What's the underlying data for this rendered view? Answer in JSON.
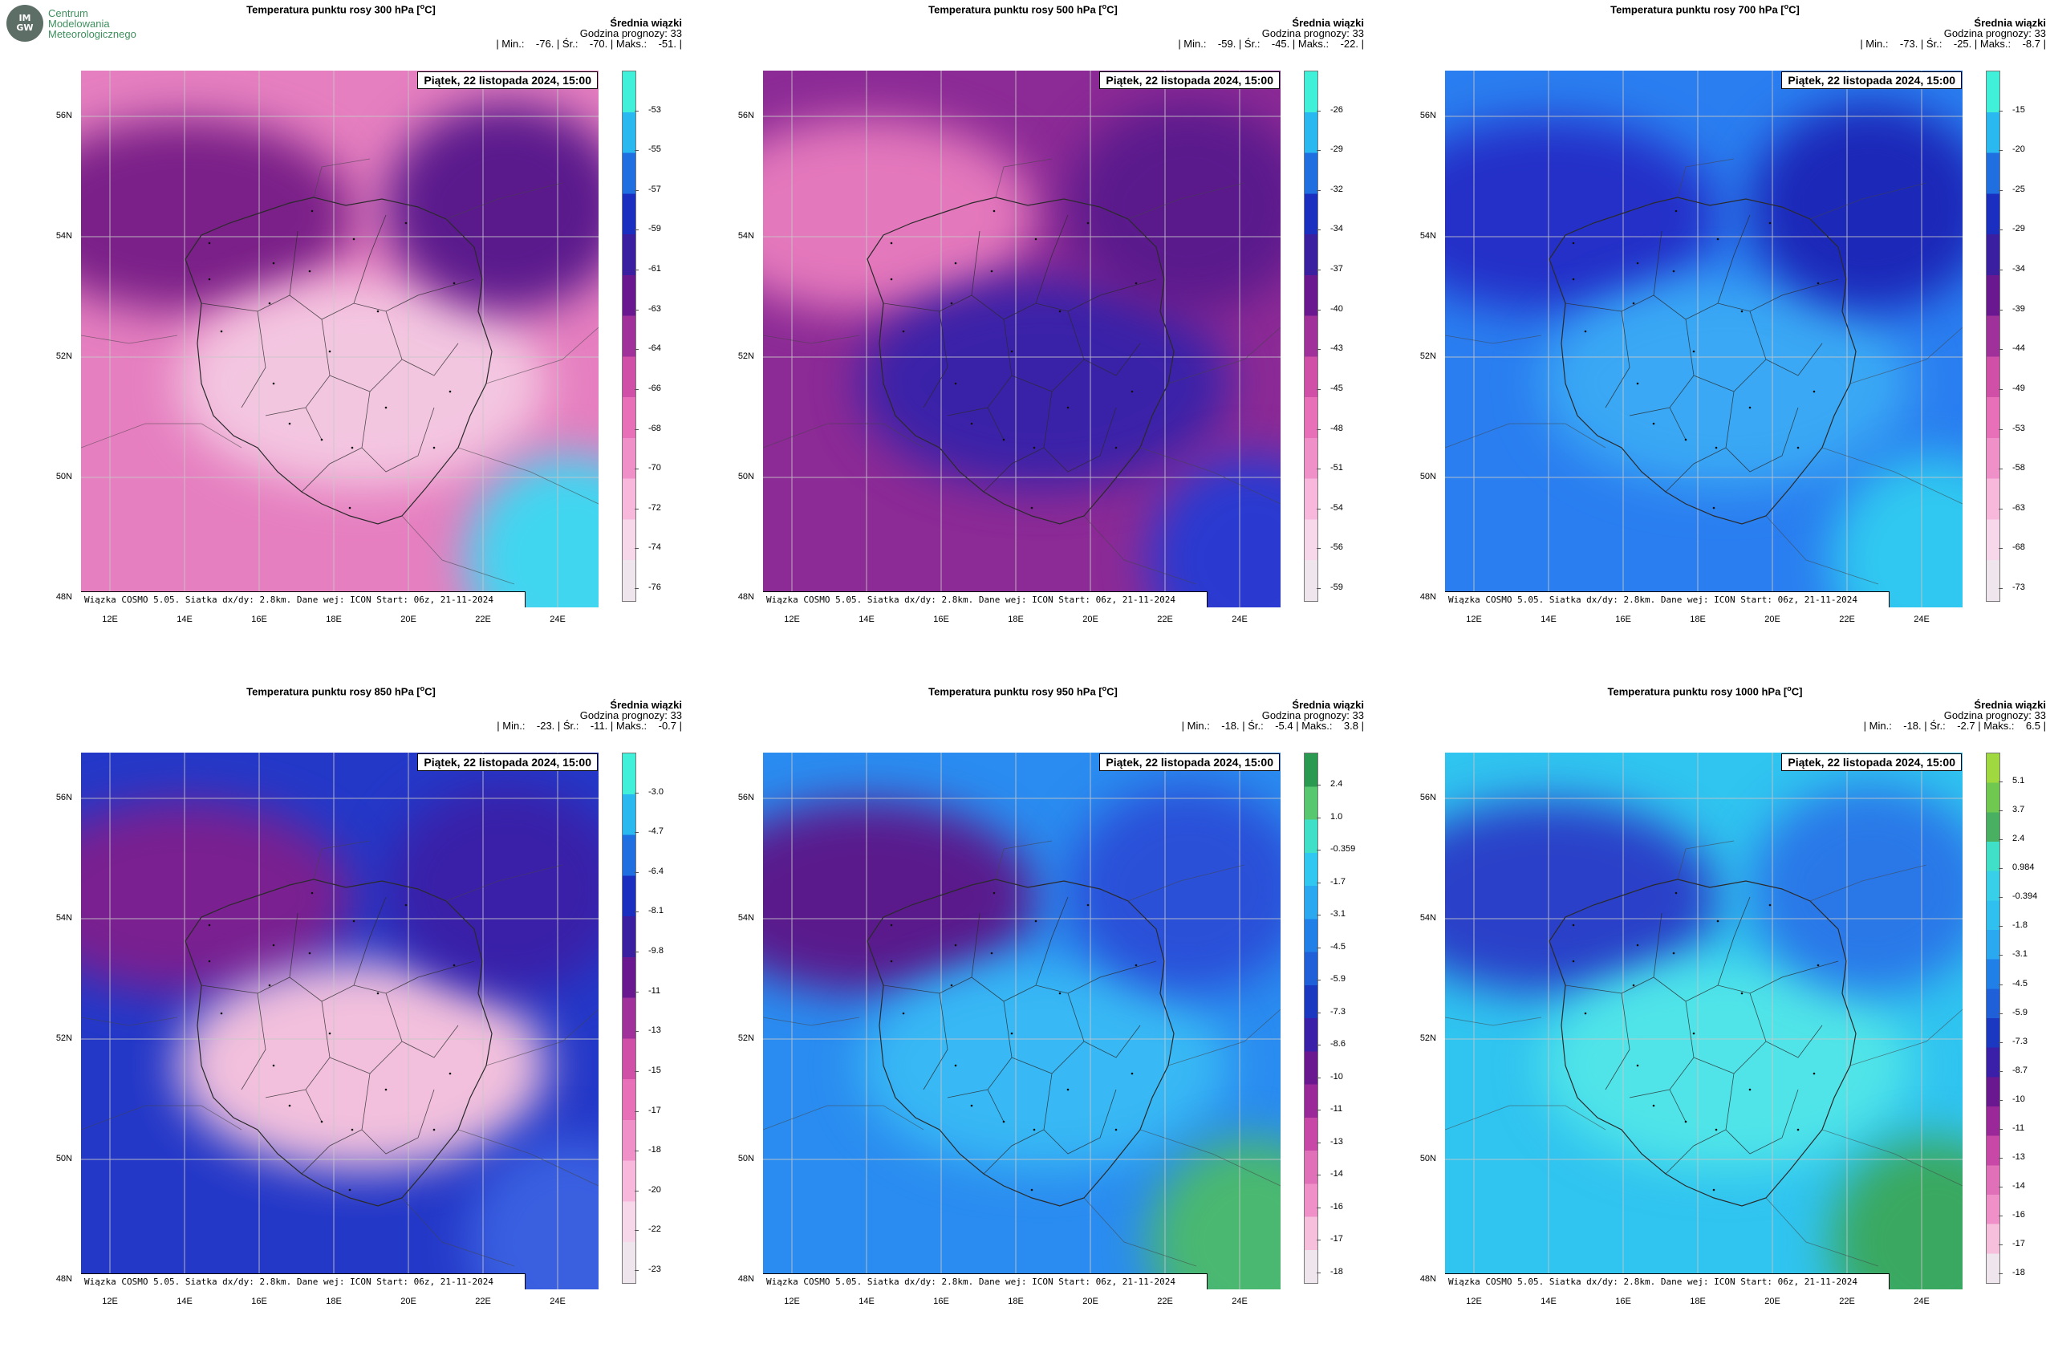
{
  "logo": {
    "mark_top": "IM",
    "mark_bottom": "GW",
    "line1": "Centrum",
    "line2": "Modelowania",
    "line3": "Meteorologicznego"
  },
  "common": {
    "subtitle": "Średnia wiązki",
    "forecast_hour": "Godzina prognozy: 33",
    "date": "Piątek, 22 listopada 2024, 15:00",
    "footer": "Wiązka COSMO 5.05. Siatka dx/dy: 2.8km. Dane wej: ICON Start: 06z, 21-11-2024",
    "lat_labels": [
      "56N",
      "54N",
      "52N",
      "50N",
      "48N"
    ],
    "lon_labels": [
      "12E",
      "14E",
      "16E",
      "18E",
      "20E",
      "22E",
      "24E"
    ]
  },
  "panels": [
    {
      "title": "Temperatura punktu rosy 300 hPa [",
      "unit_sup": "o",
      "unit_end": "C]",
      "stats": "| Min.:    -76. | Śr.:    -70. | Maks.:    -51. |",
      "colorbar_ticks": [
        "-53",
        "-55",
        "-57",
        "-59",
        "-61",
        "-63",
        "-64",
        "-66",
        "-68",
        "-70",
        "-72",
        "-74",
        "-76"
      ],
      "colorbar_colors": [
        "#40f0d8",
        "#2ab8f0",
        "#1f6fe0",
        "#1a2fc0",
        "#3a1fa0",
        "#6a1890",
        "#a0309a",
        "#d050a8",
        "#e870b8",
        "#f090c8",
        "#f8b8dc",
        "#f6d8ea",
        "#eee6ec"
      ],
      "field": {
        "base": "#e67fc0",
        "b1": "#7a2088",
        "b2": "#f3c6e0",
        "b3": "#5a1a8c",
        "b4": "#40d6f0"
      }
    },
    {
      "title": "Temperatura punktu rosy 500 hPa [",
      "unit_sup": "o",
      "unit_end": "C]",
      "stats": "| Min.:    -59. | Śr.:    -45. | Maks.:    -22. |",
      "colorbar_ticks": [
        "-26",
        "-29",
        "-32",
        "-34",
        "-37",
        "-40",
        "-43",
        "-45",
        "-48",
        "-51",
        "-54",
        "-56",
        "-59"
      ],
      "colorbar_colors": [
        "#40f0d8",
        "#2ab8f0",
        "#1f6fe0",
        "#1a2fc0",
        "#3a1fa0",
        "#6a1890",
        "#a0309a",
        "#d050a8",
        "#e870b8",
        "#f090c8",
        "#f8b8dc",
        "#f6d8ea",
        "#eee6ec"
      ],
      "field": {
        "base": "#8c2a96",
        "b1": "#e478bc",
        "b2": "#3a22a8",
        "b3": "#5a1a8c",
        "b4": "#2a3ad0"
      }
    },
    {
      "title": "Temperatura punktu rosy 700 hPa [",
      "unit_sup": "o",
      "unit_end": "C]",
      "stats": "| Min.:    -73. | Śr.:    -25. | Maks.:    -8.7 |",
      "colorbar_ticks": [
        "-15",
        "-20",
        "-25",
        "-29",
        "-34",
        "-39",
        "-44",
        "-49",
        "-53",
        "-58",
        "-63",
        "-68",
        "-73"
      ],
      "colorbar_colors": [
        "#40f0d8",
        "#2ab8f0",
        "#1f6fe0",
        "#1a2fc0",
        "#3a1fa0",
        "#6a1890",
        "#a0309a",
        "#d050a8",
        "#e870b8",
        "#f090c8",
        "#f8b8dc",
        "#f6d8ea",
        "#eee6ec"
      ],
      "field": {
        "base": "#2a7ef0",
        "b1": "#2430c8",
        "b2": "#3aa8f4",
        "b3": "#1c28b8",
        "b4": "#30c8f0"
      }
    },
    {
      "title": "Temperatura punktu rosy 850 hPa [",
      "unit_sup": "o",
      "unit_end": "C]",
      "stats": "| Min.:    -23. | Śr.:    -11. | Maks.:    -0.7 |",
      "colorbar_ticks": [
        "-3.0",
        "-4.7",
        "-6.4",
        "-8.1",
        "-9.8",
        "-11",
        "-13",
        "-15",
        "-17",
        "-18",
        "-20",
        "-22",
        "-23"
      ],
      "colorbar_colors": [
        "#40f0d8",
        "#2ab8f0",
        "#1f6fe0",
        "#1a2fc0",
        "#3a1fa0",
        "#6a1890",
        "#a0309a",
        "#d050a8",
        "#e870b8",
        "#f090c8",
        "#f8b8dc",
        "#f6d8ea",
        "#eee6ec"
      ],
      "field": {
        "base": "#2438c8",
        "b1": "#7a2090",
        "b2": "#f2c0dc",
        "b3": "#3a20a8",
        "b4": "#3a60e0"
      }
    },
    {
      "title": "Temperatura punktu rosy 950 hPa [",
      "unit_sup": "o",
      "unit_end": "C]",
      "stats": "| Min.:    -18. | Śr.:    -5.4 | Maks.:    3.8 |",
      "colorbar_ticks": [
        "2.4",
        "1.0",
        "-0.359",
        "-1.7",
        "-3.1",
        "-4.5",
        "-5.9",
        "-7.3",
        "-8.6",
        "-10",
        "-11",
        "-13",
        "-14",
        "-16",
        "-17",
        "-18"
      ],
      "colorbar_colors": [
        "#2a9a50",
        "#58c870",
        "#40e0c8",
        "#30c8f0",
        "#2aa8f0",
        "#2080e8",
        "#1f5fd8",
        "#1a38c0",
        "#3a20a8",
        "#6a1890",
        "#9a2898",
        "#c848a8",
        "#e070b8",
        "#f090c8",
        "#f6c0dc",
        "#eee6ec"
      ],
      "field": {
        "base": "#2a8cf0",
        "b1": "#5a1a8c",
        "b2": "#38b8f4",
        "b3": "#2a50d8",
        "b4": "#4ab870"
      }
    },
    {
      "title": "Temperatura punktu rosy 1000 hPa [",
      "unit_sup": "o",
      "unit_end": "C]",
      "stats": "| Min.:    -18. | Śr.:    -2.7 | Maks.:    6.5 |",
      "colorbar_ticks": [
        "5.1",
        "3.7",
        "2.4",
        "0.984",
        "-0.394",
        "-1.8",
        "-3.1",
        "-4.5",
        "-5.9",
        "-7.3",
        "-8.7",
        "-10",
        "-11",
        "-13",
        "-14",
        "-16",
        "-17",
        "-18"
      ],
      "colorbar_colors": [
        "#a0d840",
        "#70c850",
        "#48b060",
        "#40e0c8",
        "#38d0e8",
        "#30c0f0",
        "#2aa8f0",
        "#2080e8",
        "#1f5fd8",
        "#1a38c0",
        "#3a20a8",
        "#6a1890",
        "#9a2898",
        "#c848a8",
        "#e070b8",
        "#f090c8",
        "#f6c0dc",
        "#eee6ec"
      ],
      "field": {
        "base": "#30c4f0",
        "b1": "#2a40c8",
        "b2": "#50e4e8",
        "b3": "#2a78e8",
        "b4": "#3aa860"
      }
    }
  ]
}
